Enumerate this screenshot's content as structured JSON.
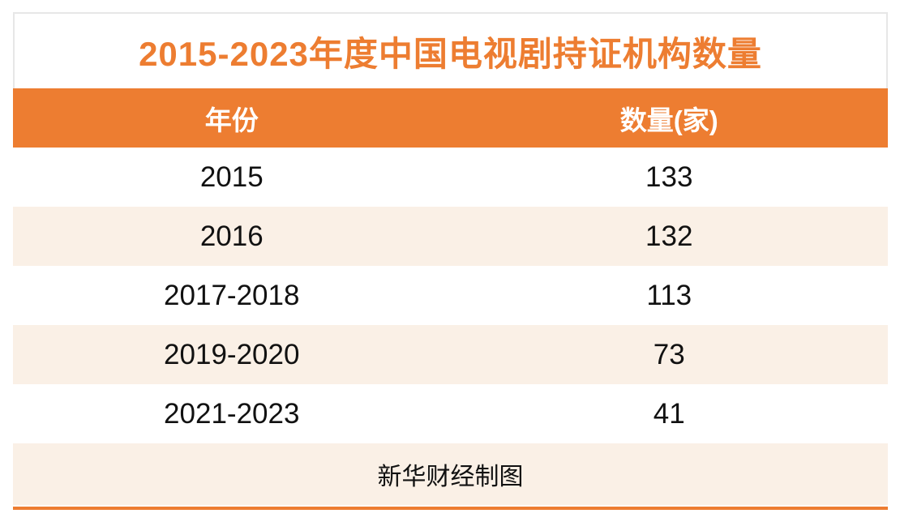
{
  "title": "2015-2023年度中国电视剧持证机构数量",
  "colors": {
    "accent_orange": "#ed7d31",
    "row_alt_cream": "#faf0e6",
    "title_border_gray": "#e7e7e7",
    "header_text": "#ffffff",
    "body_text": "#111111"
  },
  "table": {
    "columns": {
      "year": "年份",
      "count": "数量(家)"
    },
    "rows": [
      {
        "year": "2015",
        "count": "133"
      },
      {
        "year": "2016",
        "count": "132"
      },
      {
        "year": "2017-2018",
        "count": "113"
      },
      {
        "year": "2019-2020",
        "count": "73"
      },
      {
        "year": "2021-2023",
        "count": "41"
      }
    ]
  },
  "footer": {
    "credit": "新华财经制图"
  },
  "chart_data": {
    "type": "table",
    "title": "2015-2023年度中国电视剧持证机构数量",
    "columns": [
      "年份",
      "数量(家)"
    ],
    "categories": [
      "2015",
      "2016",
      "2017-2018",
      "2019-2020",
      "2021-2023"
    ],
    "values": [
      133,
      132,
      113,
      73,
      41
    ],
    "source_note": "新华财经制图"
  }
}
